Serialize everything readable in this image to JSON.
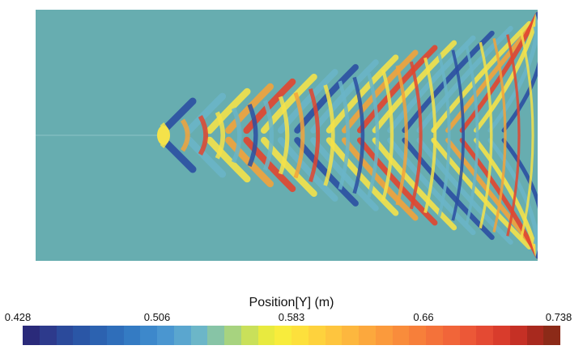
{
  "legend": {
    "title": "Position[Y] (m)",
    "ticks": [
      "0.428",
      "0.506",
      "0.583",
      "0.66",
      "0.738"
    ],
    "colors": [
      "#2a2a7a",
      "#2d3a8c",
      "#2b4a9b",
      "#2a56a6",
      "#2c62b0",
      "#2f6eba",
      "#347bc3",
      "#3d88cb",
      "#4a96d0",
      "#5aa6cf",
      "#6cb6c8",
      "#87c4a6",
      "#a7d37f",
      "#c9e05a",
      "#e8ea3f",
      "#f8ec3c",
      "#fde03c",
      "#fed23d",
      "#fec53e",
      "#fdb73e",
      "#fca83d",
      "#fb9a3c",
      "#f98c3b",
      "#f77f3a",
      "#f4723a",
      "#f16539",
      "#ec5837",
      "#e44a33",
      "#d93c2c",
      "#c53025",
      "#a8291e",
      "#8c2a18"
    ],
    "background_color": "#67adb0"
  }
}
